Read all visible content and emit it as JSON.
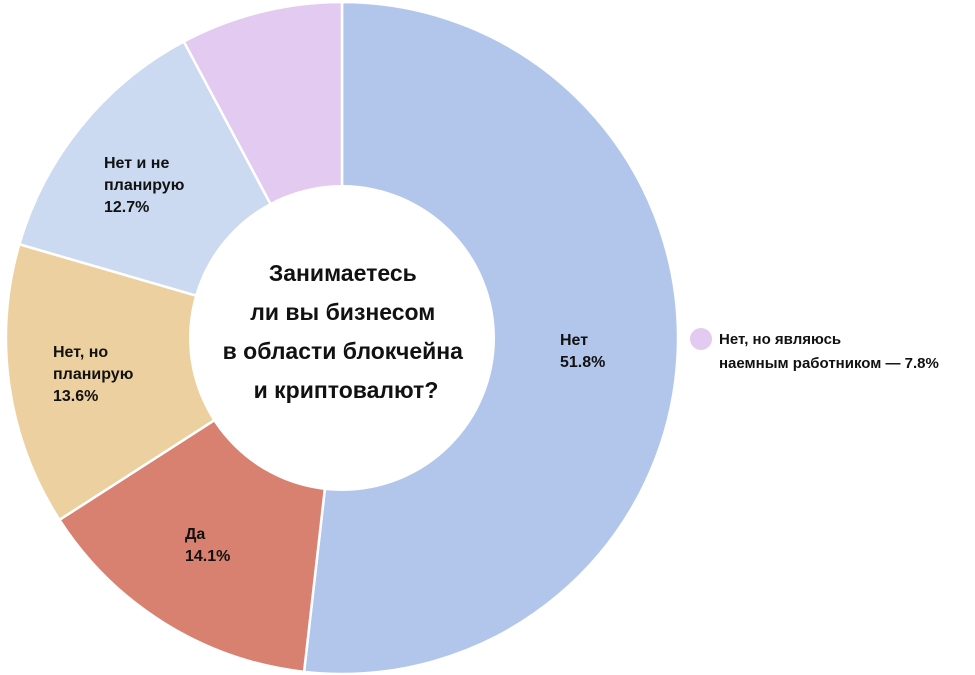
{
  "chart_data": {
    "type": "pie",
    "title_lines": [
      "Занимаетесь",
      "ли вы бизнесом",
      "в области блокчейна",
      "и криптовалют?"
    ],
    "slices": [
      {
        "key": "net",
        "label_lines": [
          "Нет",
          "51.8%"
        ],
        "value": 51.8,
        "color": "#b2c6ec"
      },
      {
        "key": "da",
        "label_lines": [
          "Да",
          "14.1%"
        ],
        "value": 14.1,
        "color": "#d98170"
      },
      {
        "key": "net-no-planiruyu",
        "label_lines": [
          "Нет, но",
          "планирую",
          "13.6%"
        ],
        "value": 13.6,
        "color": "#ecd09f"
      },
      {
        "key": "net-i-ne-planiruyu",
        "label_lines": [
          "Нет и не",
          "планирую",
          "12.7%"
        ],
        "value": 12.7,
        "color": "#cbdaf1"
      },
      {
        "key": "net-naemnyi",
        "label_lines": [],
        "value": 7.8,
        "color": "#e3caf0"
      }
    ],
    "legend": {
      "color": "#e3caf0",
      "lines": [
        "Нет, но являюсь",
        "наемным работником — 7.8%"
      ]
    }
  }
}
